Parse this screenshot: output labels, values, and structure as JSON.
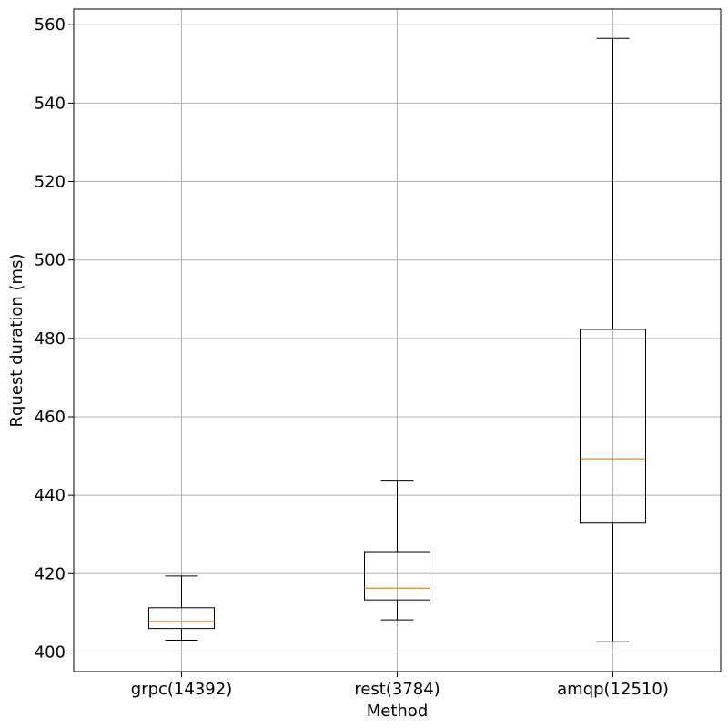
{
  "chart_data": {
    "type": "box",
    "xlabel": "Method",
    "ylabel": "Rquest duration (ms)",
    "ylim": [
      395,
      564
    ],
    "yticks": [
      400,
      420,
      440,
      460,
      480,
      500,
      520,
      540,
      560
    ],
    "grid": true,
    "categories": [
      "grpc(14392)",
      "rest(3784)",
      "amqp(12510)"
    ],
    "boxes": [
      {
        "whisker_low": 403.0,
        "q1": 406.0,
        "median": 407.8,
        "q3": 411.3,
        "whisker_high": 419.4
      },
      {
        "whisker_low": 408.2,
        "q1": 413.3,
        "median": 416.3,
        "q3": 425.4,
        "whisker_high": 443.6
      },
      {
        "whisker_low": 402.6,
        "q1": 432.9,
        "median": 449.3,
        "q3": 482.3,
        "whisker_high": 556.5
      }
    ],
    "colors": {
      "box": "#000000",
      "median": "#ff7f0e",
      "grid": "#b0b0b0"
    }
  }
}
